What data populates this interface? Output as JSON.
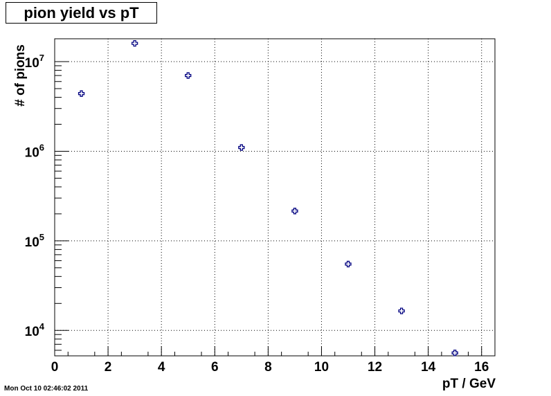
{
  "chart_data": {
    "type": "scatter",
    "title": "pion yield vs pT",
    "xlabel": "pT / GeV",
    "ylabel": "# of pions",
    "xlim": [
      0,
      16.5
    ],
    "ylim": [
      5200,
      18000000
    ],
    "yscale": "log",
    "grid": true,
    "marker_color": "#000080",
    "x_ticks": [
      0,
      2,
      4,
      6,
      8,
      10,
      12,
      14,
      16
    ],
    "y_ticks": [
      {
        "value": 10000,
        "base": "10",
        "exp": "4"
      },
      {
        "value": 100000,
        "base": "10",
        "exp": "5"
      },
      {
        "value": 1000000,
        "base": "10",
        "exp": "6"
      },
      {
        "value": 10000000,
        "base": "10",
        "exp": "7"
      }
    ],
    "points": [
      {
        "x": 1,
        "y": 4400000
      },
      {
        "x": 3,
        "y": 16000000
      },
      {
        "x": 5,
        "y": 7000000
      },
      {
        "x": 7,
        "y": 1100000
      },
      {
        "x": 9,
        "y": 215000
      },
      {
        "x": 11,
        "y": 55000
      },
      {
        "x": 13,
        "y": 16500
      },
      {
        "x": 15,
        "y": 5600
      }
    ]
  },
  "footer": {
    "timestamp": "Mon Oct 10 02:46:02 2011"
  }
}
